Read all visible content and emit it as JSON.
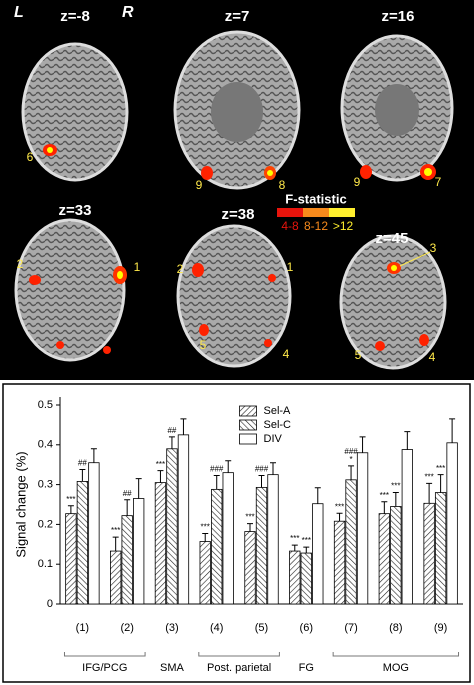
{
  "brain_panel": {
    "side_left": "L",
    "side_right": "R",
    "slices": [
      "z=-8",
      "z=7",
      "z=16",
      "z=33",
      "z=38",
      "z=45"
    ],
    "region_numbers": [
      "6",
      "9",
      "8",
      "9",
      "7",
      "2",
      "1",
      "2",
      "1",
      "3",
      "5",
      "4",
      "5",
      "4"
    ],
    "colorbar_title": "F-statistic",
    "colorbar_labels": [
      "4-8",
      "8-12",
      ">12"
    ]
  },
  "chart_data": {
    "type": "bar",
    "y_label": "Signal change (%)",
    "categories": [
      "(1)",
      "(2)",
      "(3)",
      "(4)",
      "(5)",
      "(6)",
      "(7)",
      "(8)",
      "(9)"
    ],
    "group_labels": [
      {
        "label": "IFG/PCG",
        "from": 0,
        "to": 1
      },
      {
        "label": "SMA",
        "from": 2,
        "to": 2
      },
      {
        "label": "Post. parietal",
        "from": 3,
        "to": 4
      },
      {
        "label": "FG",
        "from": 5,
        "to": 5
      },
      {
        "label": "MOG",
        "from": 6,
        "to": 8
      }
    ],
    "series": [
      {
        "name": "Sel-A",
        "color": "#ffffff",
        "hatch": "forward",
        "values": [
          0.227,
          0.133,
          0.305,
          0.157,
          0.182,
          0.133,
          0.208,
          0.227,
          0.253
        ],
        "errors": [
          0.02,
          0.035,
          0.03,
          0.02,
          0.02,
          0.015,
          0.02,
          0.03,
          0.05
        ],
        "annotations": [
          "***",
          "***",
          "***",
          "***",
          "***",
          "***",
          "***",
          "***",
          "***"
        ]
      },
      {
        "name": "Sel-C",
        "color": "#ffffff",
        "hatch": "backward",
        "values": [
          0.308,
          0.222,
          0.39,
          0.288,
          0.293,
          0.128,
          0.312,
          0.245,
          0.28
        ],
        "errors": [
          0.03,
          0.04,
          0.03,
          0.035,
          0.03,
          0.015,
          0.035,
          0.035,
          0.045
        ],
        "annotations": [
          "##",
          "##",
          "##",
          "###",
          "###",
          "***",
          [
            "*",
            "###"
          ],
          "***",
          "***"
        ]
      },
      {
        "name": "DIV",
        "color": "#ffffff",
        "values": [
          0.355,
          0.265,
          0.425,
          0.33,
          0.325,
          0.252,
          0.38,
          0.388,
          0.405
        ],
        "errors": [
          0.035,
          0.05,
          0.04,
          0.03,
          0.03,
          0.04,
          0.04,
          0.045,
          0.06
        ]
      }
    ],
    "ylim": [
      0,
      0.5
    ],
    "yticks": [
      0,
      0.1,
      0.2,
      0.3,
      0.4,
      0.5
    ],
    "legend": "upper center"
  }
}
